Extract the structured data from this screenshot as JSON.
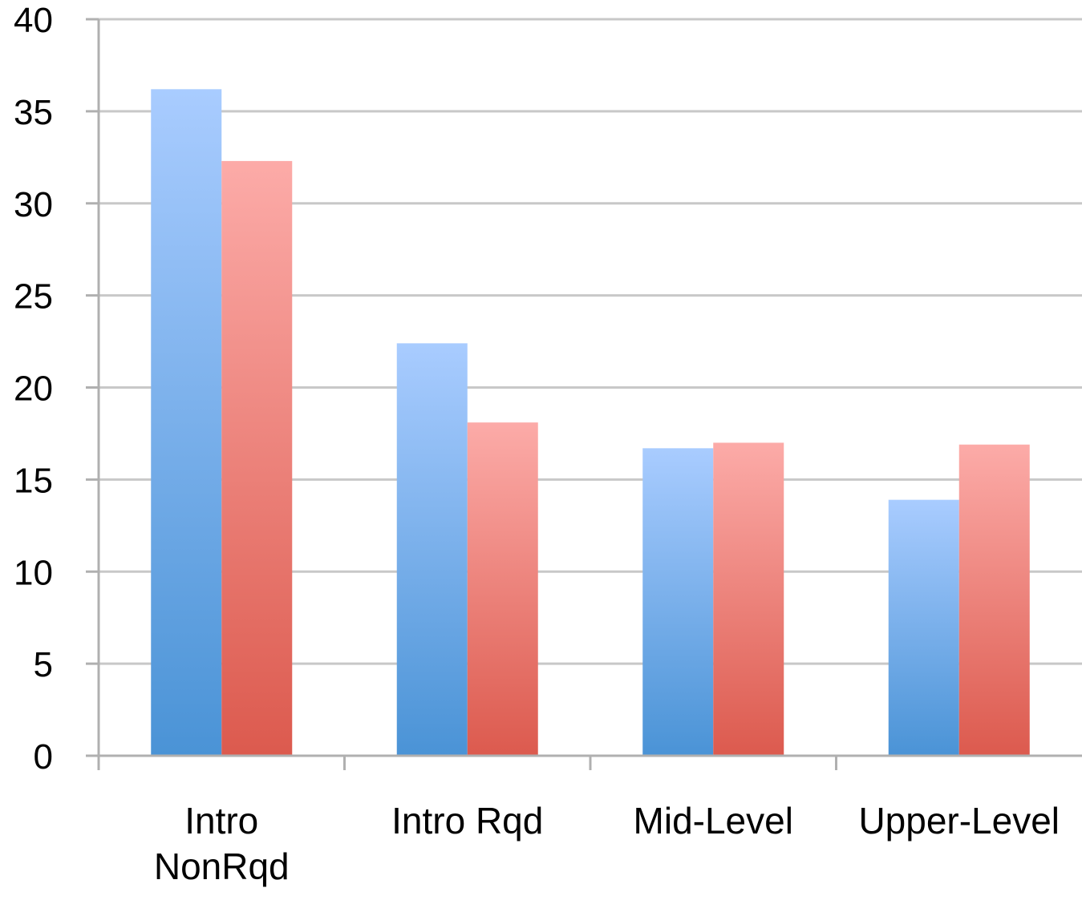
{
  "chart_data": {
    "type": "bar",
    "categories": [
      [
        "Intro",
        "NonRqd"
      ],
      [
        "Intro Rqd"
      ],
      [
        "Mid-Level"
      ],
      [
        "Upper-Level"
      ]
    ],
    "series": [
      {
        "values": [
          36.2,
          22.4,
          16.7,
          13.9
        ],
        "color_top": "#a9ccff",
        "color_bottom": "#4a93d6"
      },
      {
        "values": [
          32.3,
          18.1,
          17.0,
          16.9
        ],
        "color_top": "#fcaba8",
        "color_bottom": "#dc5a4e"
      }
    ],
    "y_ticks": [
      "0",
      "5",
      "10",
      "15",
      "20",
      "25",
      "30",
      "35",
      "40"
    ],
    "ylim": [
      0,
      40
    ],
    "grid": true,
    "legend": "none",
    "colors": {
      "gridline": "#c8c8c8",
      "axis": "#b0b0b0"
    }
  }
}
